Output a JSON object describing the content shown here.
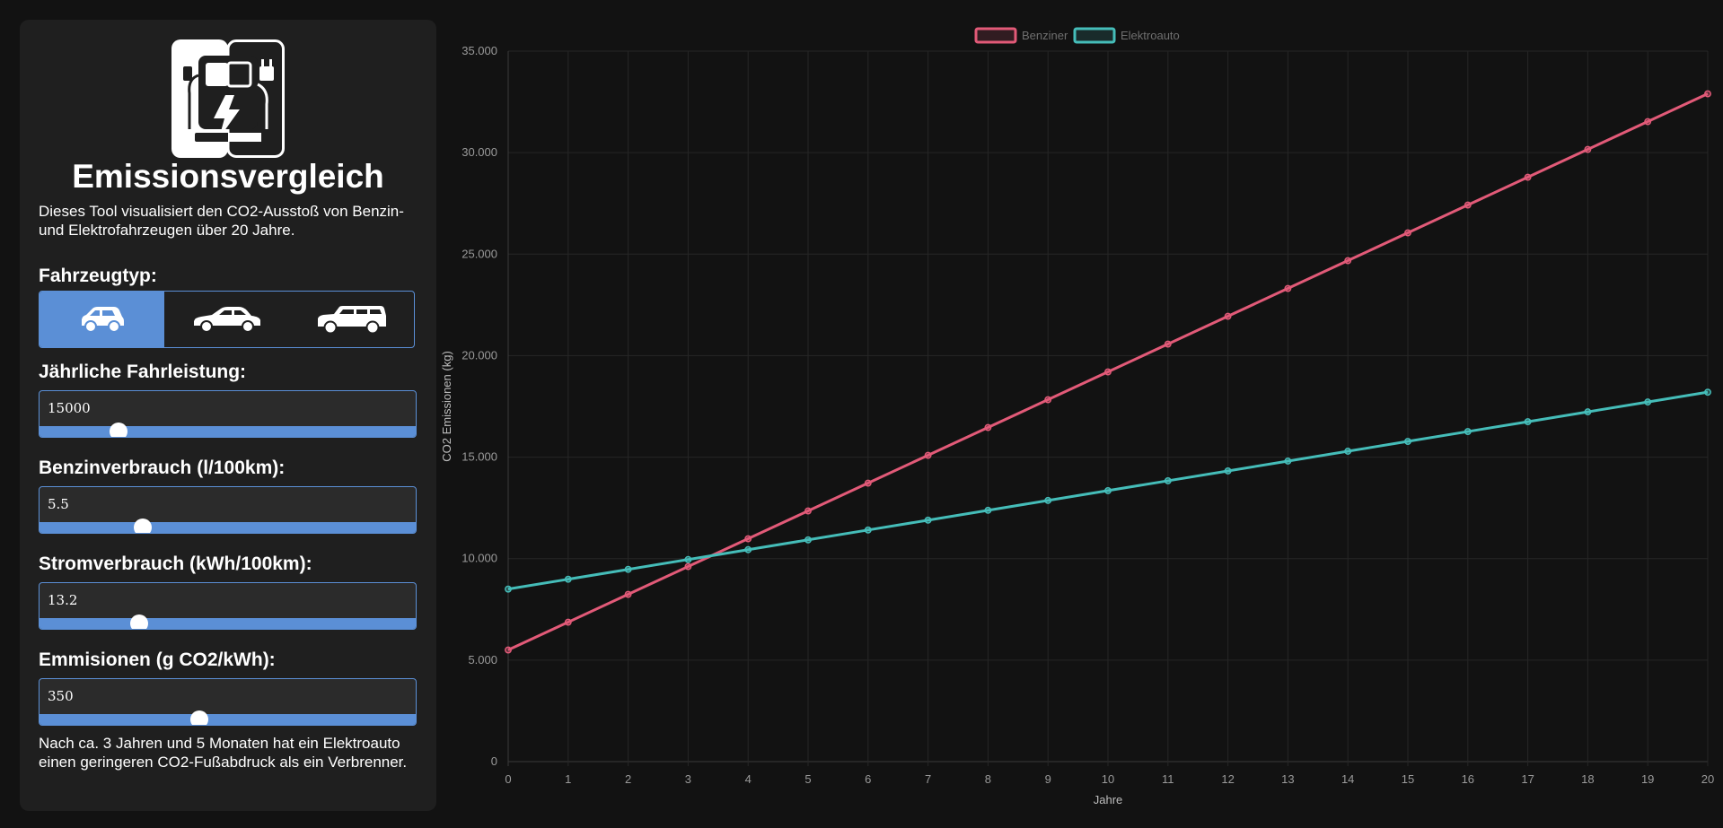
{
  "app": {
    "title": "Emissionsvergleich",
    "intro": "Dieses Tool visualisiert den CO2-Ausstoß von Benzin- und Elektrofahrzeugen über 20 Jahre.",
    "logo_icon": "fuel-vs-electric-charger-icon"
  },
  "vehicle": {
    "label": "Fahrzeugtyp:",
    "options": [
      {
        "icon": "small-car-icon",
        "selected": true
      },
      {
        "icon": "sedan-car-icon",
        "selected": false
      },
      {
        "icon": "suv-car-icon",
        "selected": false
      }
    ]
  },
  "inputs": [
    {
      "label": "Jährliche Fahrleistung:",
      "value": "15000",
      "slider_fraction": 0.21
    },
    {
      "label": "Benzinverbrauch (l/100km):",
      "value": "5.5",
      "slider_fraction": 0.275
    },
    {
      "label": "Stromverbrauch (kWh/100km):",
      "value": "13.2",
      "slider_fraction": 0.264
    },
    {
      "label": "Emmisionen (g CO2/kWh):",
      "value": "350",
      "slider_fraction": 0.425
    }
  ],
  "result_text": "Nach ca. 3 Jahren und 5 Monaten hat ein Elektroauto einen geringeren CO2-Fußabdruck als ein Verbrenner.",
  "colors": {
    "accent": "#5b8fd6",
    "benziner": "#e25a78",
    "elektro": "#45bdb9",
    "panel": "#1f1f1f",
    "background": "#121212"
  },
  "chart_data": {
    "type": "line",
    "xlabel": "Jahre",
    "ylabel": "CO2 Emissionen (kg)",
    "x": [
      0,
      1,
      2,
      3,
      4,
      5,
      6,
      7,
      8,
      9,
      10,
      11,
      12,
      13,
      14,
      15,
      16,
      17,
      18,
      19,
      20
    ],
    "ylim": [
      0,
      35000
    ],
    "yticks": [
      0,
      5000,
      10000,
      15000,
      20000,
      25000,
      30000,
      35000
    ],
    "ytick_labels": [
      "0",
      "5.000",
      "10.000",
      "15.000",
      "20.000",
      "25.000",
      "30.000",
      "35.000"
    ],
    "grid": true,
    "legend_position": "top-center",
    "series": [
      {
        "name": "Benziner",
        "values": [
          5500,
          6870,
          8240,
          9610,
          10980,
          12350,
          13720,
          15090,
          16460,
          17830,
          19200,
          20570,
          21940,
          23310,
          24680,
          26050,
          27420,
          28790,
          30160,
          31530,
          32900
        ]
      },
      {
        "name": "Elektroauto",
        "values": [
          8500,
          8985,
          9470,
          9955,
          10440,
          10925,
          11410,
          11895,
          12380,
          12865,
          13350,
          13835,
          14320,
          14805,
          15290,
          15775,
          16260,
          16745,
          17230,
          17715,
          18200
        ]
      }
    ]
  }
}
